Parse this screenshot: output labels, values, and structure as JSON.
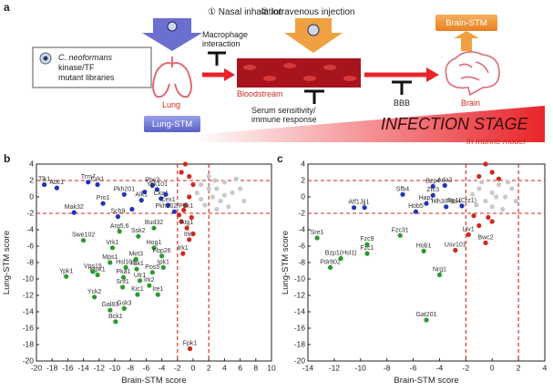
{
  "diagram": {
    "panel_label": "a",
    "library_box": {
      "species": "C. neoformans",
      "lines": [
        "kinase/TF",
        "mutant libraries"
      ]
    },
    "steps": [
      "① Nasal inhalation",
      "② Intravenous injection"
    ],
    "macrophage": [
      "Macrophage",
      "interaction"
    ],
    "lung": "Lung",
    "lung_stm": "Lung-STM",
    "bloodstream": "Bloodstream",
    "serum": [
      "Serum sensitivity/",
      "immune response"
    ],
    "bbb": "BBB",
    "brain": "Brain",
    "brain_stm": "Brain-STM",
    "stage": "INFECTION STAGE",
    "model": "In murine model"
  },
  "chart_data": [
    {
      "type": "scatter",
      "panel_label": "b",
      "xlabel": "Brain-STM score",
      "ylabel": "Lung-STM score",
      "xlim": [
        -20,
        10
      ],
      "ylim": [
        -20,
        4
      ],
      "xticks": [
        -20,
        -18,
        -16,
        -14,
        -12,
        -10,
        -8,
        -6,
        -4,
        -2,
        0,
        2,
        4,
        6,
        8,
        10
      ],
      "yticks": [
        -20,
        -18,
        -16,
        -14,
        -12,
        -10,
        -8,
        -6,
        -4,
        -2,
        0,
        2,
        4
      ],
      "reference_lines": {
        "x": [
          -2,
          2
        ],
        "y": [
          -2,
          2
        ],
        "color": "#d62020"
      },
      "series": [
        {
          "color": "#c9c9c9",
          "x": [
            1,
            2,
            3,
            4,
            5,
            3.5,
            2.5,
            1.5,
            4.5,
            6,
            5.5,
            2,
            0.5,
            3,
            1,
            6.5,
            4,
            2.8
          ],
          "values": [
            1.5,
            2.5,
            1,
            1.8,
            0.5,
            -0.5,
            0,
            -1,
            -1.2,
            1,
            2.2,
            1,
            0.5,
            -1.5,
            -0.3,
            -0.5,
            0.2,
            2
          ]
        },
        {
          "color": "#d0281e",
          "x": [
            -1,
            -1.5,
            -0.5,
            0,
            -0.5,
            -1,
            -0.2,
            -1.5,
            -0.8,
            -0.5,
            -1.3,
            0,
            -1.8,
            -0.4,
            -1.2
          ],
          "values": [
            4,
            3,
            2.5,
            1.5,
            0,
            -1,
            -2.5,
            -3,
            -3.8,
            -5.2,
            -6.9,
            -4.5,
            -2.2,
            -18.5,
            -1.6
          ],
          "labels": [
            null,
            null,
            null,
            null,
            null,
            null,
            null,
            null,
            "Atg1",
            "Irk3",
            "Irk1",
            null,
            null,
            "Fpk1",
            null
          ]
        },
        {
          "color": "#1f35b8",
          "x": [
            -19,
            -17.4,
            -15.2,
            -13.4,
            -12.2,
            -11.5,
            -8.8,
            -6.6,
            -5.2,
            -4.6,
            -4.1,
            -3.2,
            -2.4,
            -9.6,
            -7.8,
            -6.2,
            -3.5
          ],
          "values": [
            1.5,
            1.1,
            -1.9,
            1.8,
            1.5,
            -0.8,
            0.3,
            -0.4,
            1.4,
            0.9,
            -0.2,
            -1,
            -1.8,
            -2.4,
            -1.5,
            0.6,
            0.3
          ],
          "labels": [
            "Tlk1",
            "Abc1",
            "Mak32",
            "Trm7",
            "Crk1",
            "Pro1",
            "Pkh201",
            "Alk1",
            "Pbs2",
            "Ypk101",
            "Cka1",
            "Cex1",
            "Pkh202/Pdk1",
            "Sch9",
            null,
            null,
            null
          ]
        },
        {
          "color": "#2c9a2c",
          "x": [
            -9.4,
            -7,
            -5,
            -14,
            -10.3,
            -7.3,
            -5,
            -4,
            -10.6,
            -8.6,
            -7.2,
            -5.2,
            -3.8,
            -12.2,
            -8.9,
            -6.8,
            -5.6,
            -16.2,
            -12.8,
            -9,
            -12.6,
            -10.6,
            -8.8,
            -9.9,
            -7.1,
            -4.5
          ],
          "values": [
            -4.2,
            -4.8,
            -3.8,
            -5.3,
            -6.2,
            -7.6,
            -6.2,
            -7.2,
            -8,
            -8.6,
            -8.8,
            -9.2,
            -8.6,
            -9.5,
            -9.8,
            -10.2,
            -10.8,
            -9.7,
            -9.1,
            -11,
            -12.2,
            -13.8,
            -13.6,
            -15.2,
            -11.9,
            -11.9
          ],
          "labels": [
            "Arg5,6",
            "Ssk2",
            "Bud32",
            "Swe102",
            "Vrk1",
            "Met3",
            "Hog1",
            "Fbp26",
            "Mps1",
            "Hsl101",
            "Yak1",
            "Pos5",
            "Ipk1",
            "Mpk1",
            "Pka1",
            "Utr1",
            "Irk2",
            "Ypk1",
            "Vps15",
            "Snf1",
            "Yck2",
            "Gal83",
            "Gsk3",
            "Bck1",
            "Kic1",
            "Ire1"
          ]
        }
      ]
    },
    {
      "type": "scatter",
      "panel_label": "c",
      "xlabel": "Brain-STM score",
      "ylabel": "Lung-STM score",
      "xlim": [
        -14,
        4
      ],
      "ylim": [
        -20,
        4
      ],
      "xticks": [
        -14,
        -12,
        -10,
        -8,
        -6,
        -4,
        -2,
        0,
        2,
        4
      ],
      "yticks": [
        -20,
        -18,
        -16,
        -14,
        -12,
        -10,
        -8,
        -6,
        -4,
        -2,
        0,
        2,
        4
      ],
      "reference_lines": {
        "x": [
          -2,
          2
        ],
        "y": [
          -2,
          2
        ],
        "color": "#d62020"
      },
      "series": [
        {
          "color": "#c9c9c9",
          "x": [
            -1,
            0,
            0.5,
            1,
            -0.5,
            1.5,
            0,
            -1.5,
            0.8,
            -0.8,
            1.8,
            0.3,
            -1.2,
            1.2
          ],
          "values": [
            1,
            0.5,
            1.5,
            0,
            -0.5,
            1,
            -1.2,
            0.3,
            -1.5,
            1.8,
            -0.5,
            0,
            -1,
            1.8
          ]
        },
        {
          "color": "#d0281e",
          "x": [
            -0.5,
            0,
            -1,
            0.5,
            -0.3,
            -1,
            0,
            -1.8,
            -2.8,
            -0.5,
            -1.4
          ],
          "values": [
            4,
            3,
            2.5,
            2.2,
            -2.5,
            -3.5,
            -3,
            -4.6,
            -6.5,
            -5.6,
            -2.3
          ],
          "labels": [
            null,
            null,
            null,
            null,
            null,
            null,
            null,
            "Liv1",
            "Usv101",
            "Bwc2",
            null
          ]
        },
        {
          "color": "#1f35b8",
          "x": [
            -4.5,
            -3.6,
            -6.8,
            -4.5,
            -5,
            -3.5,
            -10.5,
            -9.7,
            -5.8,
            -2.3
          ],
          "values": [
            1.3,
            1.4,
            0.3,
            0.2,
            -0.8,
            -1.2,
            -1.3,
            -1.3,
            -1.8,
            -1.1
          ],
          "labels": [
            "Bzp4",
            "Ada2",
            "Sfb4",
            "Zfc3",
            "Hap2",
            "Hlh3/Pho4",
            "Atf1",
            "Jjj1",
            "Hob5",
            "Sp1(Crz1)"
          ]
        },
        {
          "color": "#2c9a2c",
          "x": [
            -13.3,
            -9.5,
            -7,
            -11.5,
            -12.3,
            -9.5,
            -5.2,
            -4,
            -5
          ],
          "values": [
            -5,
            -5.8,
            -4.7,
            -7.5,
            -8.6,
            -6.9,
            -6.6,
            -9.5,
            -15
          ],
          "labels": [
            "Sre1",
            "Fzc9",
            "Fzc31",
            "Bzp1(Hsl1)",
            "Pdr802",
            "Fzc1",
            "Hob1",
            "Nrg1",
            "Gat201"
          ]
        }
      ]
    }
  ]
}
